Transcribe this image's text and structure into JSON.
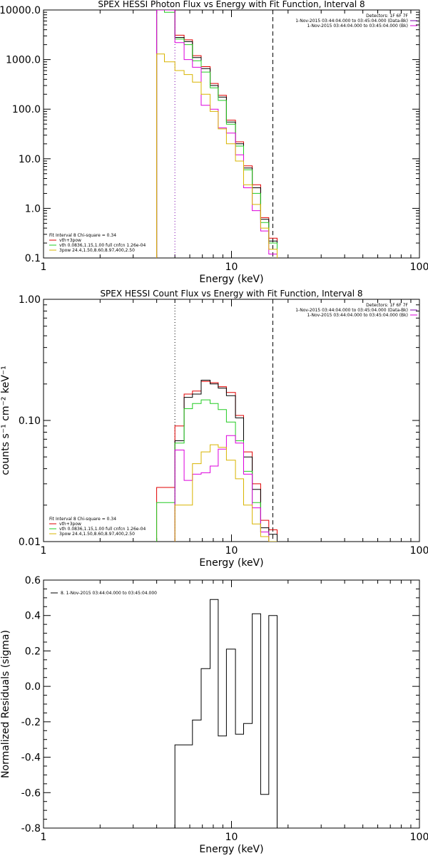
{
  "colors": {
    "black": "#000000",
    "red": "#e00000",
    "green": "#22cc22",
    "magenta": "#dd00dd",
    "yellow": "#d8b400",
    "purple": "#7a00aa"
  },
  "chart_data": [
    {
      "type": "line",
      "title": "SPEX HESSI Photon Flux vs Energy with Fit Function, Interval 8",
      "xlabel": "Energy (keV)",
      "ylabel": "",
      "xscale": "log",
      "yscale": "log",
      "xlim": [
        1,
        100
      ],
      "ylim": [
        0.1,
        10000
      ],
      "x_ticks": [
        "1",
        "10",
        "100"
      ],
      "y_ticks": [
        "0.1",
        "1.0",
        "10.0",
        "100.0",
        "1000.0",
        "10000.0"
      ],
      "vlines": [
        {
          "x": 5.0,
          "style": "dotted",
          "color": "purple"
        },
        {
          "x": 16.6,
          "style": "dashed",
          "color": "black"
        }
      ],
      "top_legend": [
        "Detectors: 1F 6F 7F",
        "1-Nov-2015 03:44:04.000 to 03:45:04.000 (Data-Bk)",
        "1-Nov-2015 03:44:04.000 to 03:45:04.000 (Bk)"
      ],
      "top_legend_colors": [
        "",
        "purple",
        "magenta"
      ],
      "fit_legend": [
        "Fit Interval 8   Chi-square = 0.34",
        "vth+3pow",
        "vth 0.0836,1.15,1.00  full cnfcn 1.26e-04",
        "3pow 24.4,1.50,8.60,8.97,400,2.50"
      ],
      "fit_legend_colors": [
        "",
        "red",
        "green",
        "yellow"
      ],
      "edges": [
        4.0,
        4.4,
        5.0,
        5.6,
        6.2,
        6.9,
        7.7,
        8.5,
        9.4,
        10.5,
        11.6,
        12.9,
        14.3,
        15.8,
        17.5
      ],
      "series": [
        {
          "name": "vth+3pow",
          "color": "red",
          "values": [
            10000,
            10000,
            3100,
            2500,
            1200,
            720,
            330,
            190,
            60,
            22,
            7.2,
            3.0,
            0.65,
            0.25
          ]
        },
        {
          "name": "Data-Bk",
          "color": "black",
          "values": [
            10000,
            10000,
            2800,
            2300,
            1100,
            660,
            300,
            175,
            55,
            20,
            6.5,
            2.6,
            0.6,
            0.22
          ]
        },
        {
          "name": "vth",
          "color": "green",
          "values": [
            10000,
            9000,
            2600,
            2000,
            950,
            560,
            270,
            150,
            50,
            18,
            6.0,
            2.0,
            0.52,
            0.2
          ]
        },
        {
          "name": "Bk",
          "color": "magenta",
          "values": [
            10000,
            10000,
            2200,
            1000,
            700,
            120,
            100,
            42,
            33,
            12,
            2.6,
            0.9,
            0.35,
            0.12
          ]
        },
        {
          "name": "3pow",
          "color": "yellow",
          "values": [
            1300,
            900,
            600,
            500,
            350,
            200,
            90,
            40,
            20,
            9,
            3.0,
            1.2,
            0.4,
            0.15
          ]
        }
      ]
    },
    {
      "type": "line",
      "title": "SPEX HESSI Count Flux vs Energy with Fit Function, Interval 8",
      "xlabel": "Energy (keV)",
      "ylabel": "counts s⁻¹ cm⁻² keV⁻¹",
      "xscale": "log",
      "yscale": "log",
      "xlim": [
        1,
        100
      ],
      "ylim": [
        0.01,
        1.0
      ],
      "x_ticks": [
        "1",
        "10",
        "100"
      ],
      "y_ticks": [
        "0.01",
        "0.10",
        "1.00"
      ],
      "vlines": [
        {
          "x": 5.0,
          "style": "dotted",
          "color": "black"
        },
        {
          "x": 16.6,
          "style": "dashed",
          "color": "black"
        }
      ],
      "top_legend": [
        "Detectors: 1F 6F 7F",
        "1-Nov-2015 03:44:04.000 to 03:45:04.000 (Data-Bk)",
        "1-Nov-2015 03:44:04.000 to 03:45:04.000 (Bk)"
      ],
      "top_legend_colors": [
        "",
        "purple",
        "magenta"
      ],
      "fit_legend": [
        "Fit Interval 8   Chi-square = 0.34",
        "vth+3pow",
        "vth 0.0836,1.15,1.00  full cnfcn 1.26e-04",
        "3pow 24.4,1.50,8.60,8.97,400,2.50"
      ],
      "fit_legend_colors": [
        "",
        "red",
        "green",
        "yellow"
      ],
      "edges": [
        4.0,
        4.4,
        5.0,
        5.6,
        6.2,
        6.9,
        7.7,
        8.5,
        9.4,
        10.5,
        11.6,
        12.9,
        14.3,
        15.8,
        17.5
      ],
      "series": [
        {
          "name": "vth+3pow",
          "color": "red",
          "values": [
            0.028,
            0.028,
            0.09,
            0.165,
            0.175,
            0.21,
            0.205,
            0.19,
            0.17,
            0.11,
            0.055,
            0.03,
            0.015,
            0.0125
          ]
        },
        {
          "name": "Data-Bk",
          "color": "black",
          "values": [
            null,
            null,
            0.068,
            0.155,
            0.165,
            0.215,
            0.2,
            0.185,
            0.16,
            0.105,
            0.05,
            0.027,
            0.013,
            0.0115
          ]
        },
        {
          "name": "vth",
          "color": "green",
          "values": [
            0.021,
            0.021,
            0.065,
            0.125,
            0.138,
            0.148,
            0.138,
            0.123,
            0.097,
            0.068,
            0.038,
            0.021,
            0.012,
            0.0095
          ]
        },
        {
          "name": "Bk",
          "color": "magenta",
          "values": [
            null,
            null,
            0.057,
            0.032,
            0.036,
            0.037,
            0.042,
            0.058,
            0.075,
            0.065,
            0.036,
            0.019,
            0.012,
            0.01
          ]
        },
        {
          "name": "3pow",
          "color": "yellow",
          "values": [
            null,
            null,
            0.02,
            0.02,
            0.044,
            0.055,
            0.063,
            0.06,
            0.047,
            0.033,
            0.02,
            0.014,
            0.011,
            0.009
          ]
        }
      ]
    },
    {
      "type": "line",
      "title": "",
      "xlabel": "Energy (keV)",
      "ylabel": "Normalized Residuals (sigma)",
      "xscale": "log",
      "yscale": "linear",
      "xlim": [
        1,
        100
      ],
      "ylim": [
        -0.8,
        0.6
      ],
      "x_ticks": [
        "1",
        "10",
        "100"
      ],
      "y_ticks": [
        "-0.8",
        "-0.6",
        "-0.4",
        "-0.2",
        "0.0",
        "0.2",
        "0.4",
        "0.6"
      ],
      "legend": [
        "8.  1-Nov-2015 03:44:04.000 to 03:45:04.000"
      ],
      "edges": [
        5.0,
        5.6,
        6.2,
        6.9,
        7.7,
        8.5,
        9.4,
        10.5,
        11.6,
        12.9,
        14.3,
        15.8,
        17.5
      ],
      "series": [
        {
          "name": "",
          "color": "black",
          "values": [
            -0.33,
            -0.33,
            -0.19,
            0.1,
            0.49,
            -0.28,
            0.21,
            -0.27,
            -0.21,
            0.41,
            -0.61,
            0.4
          ]
        }
      ]
    }
  ]
}
